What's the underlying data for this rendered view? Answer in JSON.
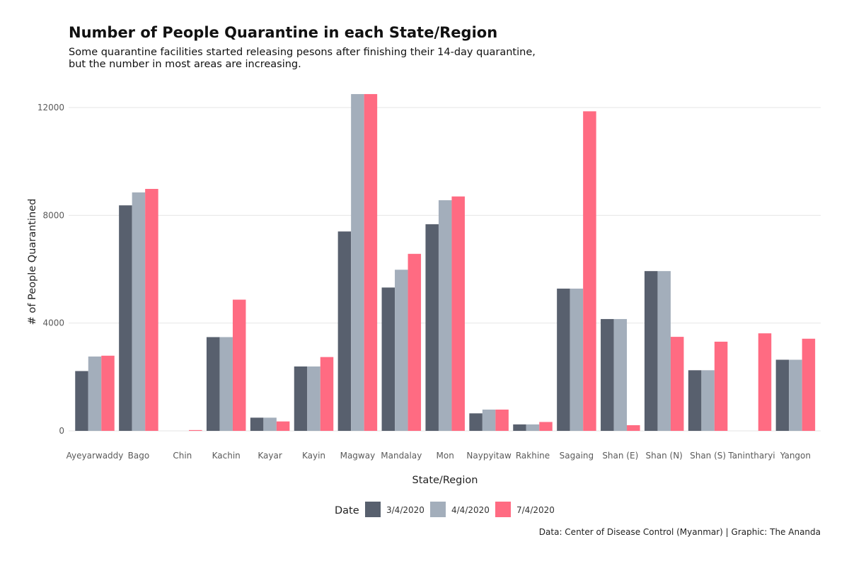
{
  "chart_data": {
    "type": "bar",
    "title": "Number of People Quarantine in each State/Region",
    "subtitle": [
      "Some quarantine facilities started releasing pesons after finishing their 14-day quarantine,",
      "but the number in most areas are increasing."
    ],
    "xlabel": "State/Region",
    "ylabel": "# of People Quarantined",
    "ylim": [
      0,
      12500
    ],
    "yticks": [
      0,
      4000,
      8000,
      12000
    ],
    "yticklabels": [
      "0",
      "4000",
      "8000",
      "12000"
    ],
    "legend_title": "Date",
    "legend_position": "bottom",
    "caption": "Data: Center of Disease Control (Myanmar) | Graphic: The Ananda",
    "categories": [
      "Ayeyarwaddy",
      "Bago",
      "Chin",
      "Kachin",
      "Kayar",
      "Kayin",
      "Magway",
      "Mandalay",
      "Mon",
      "Naypyitaw",
      "Rakhine",
      "Sagaing",
      "Shan (E)",
      "Shan (N)",
      "Shan (S)",
      "Tanintharyi",
      "Yangon"
    ],
    "series": [
      {
        "name": "3/4/2020",
        "color": "#58606e",
        "values": [
          2220,
          8370,
          0,
          3480,
          490,
          2390,
          7400,
          5320,
          7670,
          650,
          240,
          5280,
          4150,
          5930,
          2250,
          0,
          2640
        ]
      },
      {
        "name": "4/4/2020",
        "color": "#a3aebb",
        "values": [
          2760,
          8850,
          0,
          3480,
          490,
          2390,
          12500,
          5980,
          8560,
          790,
          240,
          5280,
          4150,
          5930,
          2250,
          0,
          2640
        ]
      },
      {
        "name": "7/4/2020",
        "color": "#ff6b82",
        "values": [
          2790,
          8980,
          30,
          4870,
          350,
          2740,
          12500,
          6570,
          8700,
          790,
          330,
          11860,
          210,
          3490,
          3310,
          3620,
          3420
        ]
      }
    ]
  }
}
